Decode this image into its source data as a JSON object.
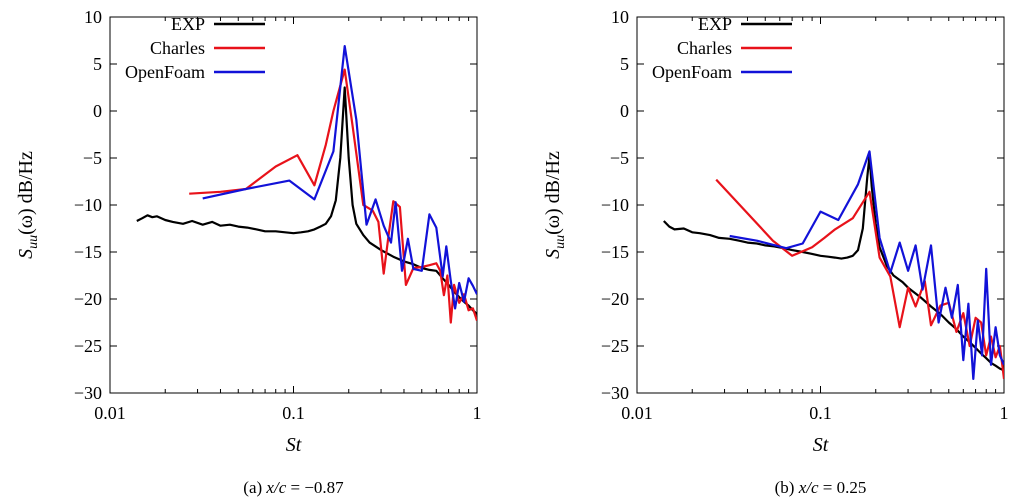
{
  "chart_data": [
    {
      "type": "line",
      "caption_prefix": "(a) ",
      "caption_var": "x/c",
      "caption_eq": " = −0.87",
      "xlabel": "St",
      "ylabel_main": "S",
      "ylabel_sub": "uu",
      "ylabel_rest": "(ω) dB/Hz",
      "xscale": "log",
      "xlim": [
        0.01,
        1
      ],
      "ylim": [
        -30,
        10
      ],
      "xticks": [
        0.01,
        0.1,
        1
      ],
      "xtick_labels": [
        "0.01",
        "0.1",
        "1"
      ],
      "yticks": [
        10,
        5,
        0,
        -5,
        -10,
        -15,
        -20,
        -25,
        -30
      ],
      "ytick_labels": [
        "10",
        "5",
        "0",
        "−5",
        "−10",
        "−15",
        "−20",
        "−25",
        "−30"
      ],
      "legend_position": "top-left",
      "series": [
        {
          "name": "EXP",
          "color": "#000000",
          "points": [
            [
              0.014,
              -11.7
            ],
            [
              0.015,
              -11.4
            ],
            [
              0.016,
              -11.1
            ],
            [
              0.017,
              -11.3
            ],
            [
              0.018,
              -11.2
            ],
            [
              0.02,
              -11.6
            ],
            [
              0.022,
              -11.8
            ],
            [
              0.025,
              -12.0
            ],
            [
              0.028,
              -11.7
            ],
            [
              0.032,
              -12.1
            ],
            [
              0.036,
              -11.8
            ],
            [
              0.04,
              -12.2
            ],
            [
              0.045,
              -12.1
            ],
            [
              0.05,
              -12.3
            ],
            [
              0.056,
              -12.4
            ],
            [
              0.063,
              -12.6
            ],
            [
              0.07,
              -12.8
            ],
            [
              0.08,
              -12.8
            ],
            [
              0.09,
              -12.9
            ],
            [
              0.1,
              -13.0
            ],
            [
              0.11,
              -12.9
            ],
            [
              0.12,
              -12.8
            ],
            [
              0.13,
              -12.6
            ],
            [
              0.14,
              -12.3
            ],
            [
              0.15,
              -12.0
            ],
            [
              0.16,
              -11.2
            ],
            [
              0.17,
              -9.5
            ],
            [
              0.18,
              -5.0
            ],
            [
              0.19,
              2.5
            ],
            [
              0.2,
              -5.0
            ],
            [
              0.21,
              -10.0
            ],
            [
              0.22,
              -12.0
            ],
            [
              0.24,
              -13.2
            ],
            [
              0.26,
              -14.0
            ],
            [
              0.3,
              -14.8
            ],
            [
              0.35,
              -15.5
            ],
            [
              0.4,
              -16.0
            ],
            [
              0.45,
              -16.3
            ],
            [
              0.5,
              -16.7
            ],
            [
              0.55,
              -16.9
            ],
            [
              0.6,
              -17.0
            ],
            [
              0.65,
              -17.8
            ],
            [
              0.7,
              -18.5
            ],
            [
              0.75,
              -19.2
            ],
            [
              0.8,
              -19.8
            ],
            [
              0.85,
              -20.3
            ],
            [
              0.9,
              -20.7
            ],
            [
              0.95,
              -21.2
            ],
            [
              1.0,
              -21.6
            ]
          ]
        },
        {
          "name": "Charles",
          "color": "#e8121a",
          "points": [
            [
              0.027,
              -8.8
            ],
            [
              0.04,
              -8.6
            ],
            [
              0.055,
              -8.3
            ],
            [
              0.08,
              -5.9
            ],
            [
              0.105,
              -4.7
            ],
            [
              0.13,
              -7.9
            ],
            [
              0.15,
              -3.6
            ],
            [
              0.165,
              0.0
            ],
            [
              0.19,
              4.4
            ],
            [
              0.21,
              -1.6
            ],
            [
              0.24,
              -10.0
            ],
            [
              0.27,
              -10.6
            ],
            [
              0.29,
              -11.8
            ],
            [
              0.31,
              -17.3
            ],
            [
              0.33,
              -13.2
            ],
            [
              0.35,
              -9.6
            ],
            [
              0.38,
              -10.2
            ],
            [
              0.41,
              -18.5
            ],
            [
              0.45,
              -16.7
            ],
            [
              0.5,
              -16.6
            ],
            [
              0.55,
              -16.4
            ],
            [
              0.6,
              -16.2
            ],
            [
              0.63,
              -17.0
            ],
            [
              0.66,
              -19.6
            ],
            [
              0.69,
              -17.5
            ],
            [
              0.72,
              -22.5
            ],
            [
              0.75,
              -18.5
            ],
            [
              0.8,
              -20.4
            ],
            [
              0.85,
              -19.5
            ],
            [
              0.9,
              -21.2
            ],
            [
              0.95,
              -21.0
            ],
            [
              1.0,
              -22.3
            ]
          ]
        },
        {
          "name": "OpenFoam",
          "color": "#1212d8",
          "points": [
            [
              0.032,
              -9.3
            ],
            [
              0.055,
              -8.3
            ],
            [
              0.095,
              -7.4
            ],
            [
              0.13,
              -9.4
            ],
            [
              0.165,
              -4.3
            ],
            [
              0.19,
              6.9
            ],
            [
              0.22,
              -0.9
            ],
            [
              0.25,
              -12.1
            ],
            [
              0.28,
              -9.4
            ],
            [
              0.31,
              -12.2
            ],
            [
              0.34,
              -14.0
            ],
            [
              0.36,
              -9.7
            ],
            [
              0.39,
              -17.0
            ],
            [
              0.42,
              -13.6
            ],
            [
              0.45,
              -16.8
            ],
            [
              0.5,
              -17.0
            ],
            [
              0.55,
              -11.0
            ],
            [
              0.6,
              -12.4
            ],
            [
              0.65,
              -17.6
            ],
            [
              0.68,
              -14.4
            ],
            [
              0.72,
              -18.1
            ],
            [
              0.76,
              -21.0
            ],
            [
              0.8,
              -18.3
            ],
            [
              0.85,
              -20.3
            ],
            [
              0.9,
              -17.8
            ],
            [
              0.95,
              -18.6
            ],
            [
              1.0,
              -19.5
            ]
          ]
        }
      ]
    },
    {
      "type": "line",
      "caption_prefix": "(b) ",
      "caption_var": "x/c",
      "caption_eq": " = 0.25",
      "xlabel": "St",
      "ylabel_main": "S",
      "ylabel_sub": "uu",
      "ylabel_rest": "(ω) dB/Hz",
      "xscale": "log",
      "xlim": [
        0.01,
        1
      ],
      "ylim": [
        -30,
        10
      ],
      "xticks": [
        0.01,
        0.1,
        1
      ],
      "xtick_labels": [
        "0.01",
        "0.1",
        "1"
      ],
      "yticks": [
        10,
        5,
        0,
        -5,
        -10,
        -15,
        -20,
        -25,
        -30
      ],
      "ytick_labels": [
        "10",
        "5",
        "0",
        "−5",
        "−10",
        "−15",
        "−20",
        "−25",
        "−30"
      ],
      "legend_position": "top-left",
      "series": [
        {
          "name": "EXP",
          "color": "#000000",
          "points": [
            [
              0.014,
              -11.7
            ],
            [
              0.015,
              -12.3
            ],
            [
              0.016,
              -12.6
            ],
            [
              0.018,
              -12.5
            ],
            [
              0.02,
              -12.9
            ],
            [
              0.022,
              -13.0
            ],
            [
              0.025,
              -13.2
            ],
            [
              0.028,
              -13.5
            ],
            [
              0.032,
              -13.6
            ],
            [
              0.036,
              -13.8
            ],
            [
              0.04,
              -14.0
            ],
            [
              0.045,
              -14.1
            ],
            [
              0.05,
              -14.3
            ],
            [
              0.056,
              -14.4
            ],
            [
              0.063,
              -14.6
            ],
            [
              0.07,
              -14.8
            ],
            [
              0.08,
              -15.0
            ],
            [
              0.09,
              -15.2
            ],
            [
              0.1,
              -15.4
            ],
            [
              0.11,
              -15.5
            ],
            [
              0.12,
              -15.6
            ],
            [
              0.13,
              -15.7
            ],
            [
              0.14,
              -15.6
            ],
            [
              0.15,
              -15.4
            ],
            [
              0.16,
              -14.8
            ],
            [
              0.17,
              -12.5
            ],
            [
              0.18,
              -7.0
            ],
            [
              0.185,
              -4.8
            ],
            [
              0.19,
              -8.0
            ],
            [
              0.2,
              -12.0
            ],
            [
              0.21,
              -14.5
            ],
            [
              0.23,
              -16.5
            ],
            [
              0.25,
              -17.5
            ],
            [
              0.28,
              -18.2
            ],
            [
              0.3,
              -18.8
            ],
            [
              0.35,
              -19.8
            ],
            [
              0.4,
              -20.8
            ],
            [
              0.45,
              -21.6
            ],
            [
              0.5,
              -22.5
            ],
            [
              0.55,
              -23.2
            ],
            [
              0.6,
              -24.0
            ],
            [
              0.65,
              -24.6
            ],
            [
              0.7,
              -25.2
            ],
            [
              0.75,
              -25.8
            ],
            [
              0.8,
              -26.3
            ],
            [
              0.85,
              -26.8
            ],
            [
              0.9,
              -27.1
            ],
            [
              0.95,
              -27.4
            ],
            [
              1.0,
              -27.6
            ]
          ]
        },
        {
          "name": "Charles",
          "color": "#e8121a",
          "points": [
            [
              0.027,
              -7.3
            ],
            [
              0.055,
              -13.8
            ],
            [
              0.07,
              -15.4
            ],
            [
              0.09,
              -14.5
            ],
            [
              0.105,
              -13.5
            ],
            [
              0.12,
              -12.6
            ],
            [
              0.15,
              -11.4
            ],
            [
              0.185,
              -8.6
            ],
            [
              0.21,
              -15.6
            ],
            [
              0.24,
              -17.6
            ],
            [
              0.27,
              -23.0
            ],
            [
              0.3,
              -18.8
            ],
            [
              0.33,
              -20.8
            ],
            [
              0.37,
              -18.1
            ],
            [
              0.4,
              -22.8
            ],
            [
              0.45,
              -20.7
            ],
            [
              0.5,
              -20.4
            ],
            [
              0.55,
              -23.5
            ],
            [
              0.6,
              -21.5
            ],
            [
              0.65,
              -25.0
            ],
            [
              0.7,
              -22.0
            ],
            [
              0.75,
              -22.5
            ],
            [
              0.8,
              -26.0
            ],
            [
              0.85,
              -24.0
            ],
            [
              0.9,
              -26.2
            ],
            [
              0.95,
              -25.0
            ],
            [
              1.0,
              -28.5
            ]
          ]
        },
        {
          "name": "OpenFoam",
          "color": "#1212d8",
          "points": [
            [
              0.032,
              -13.3
            ],
            [
              0.045,
              -13.8
            ],
            [
              0.065,
              -14.6
            ],
            [
              0.08,
              -14.1
            ],
            [
              0.1,
              -10.7
            ],
            [
              0.125,
              -11.6
            ],
            [
              0.16,
              -7.8
            ],
            [
              0.185,
              -4.3
            ],
            [
              0.21,
              -13.5
            ],
            [
              0.24,
              -17.2
            ],
            [
              0.27,
              -14.0
            ],
            [
              0.3,
              -17.0
            ],
            [
              0.33,
              -14.3
            ],
            [
              0.36,
              -19.0
            ],
            [
              0.4,
              -14.3
            ],
            [
              0.44,
              -22.5
            ],
            [
              0.48,
              -18.8
            ],
            [
              0.52,
              -22.0
            ],
            [
              0.56,
              -18.5
            ],
            [
              0.6,
              -26.5
            ],
            [
              0.64,
              -20.5
            ],
            [
              0.68,
              -28.5
            ],
            [
              0.72,
              -22.3
            ],
            [
              0.76,
              -26.0
            ],
            [
              0.8,
              -16.8
            ],
            [
              0.85,
              -27.0
            ],
            [
              0.9,
              -23.0
            ],
            [
              0.95,
              -26.0
            ],
            [
              1.0,
              -27.0
            ]
          ]
        }
      ]
    }
  ]
}
